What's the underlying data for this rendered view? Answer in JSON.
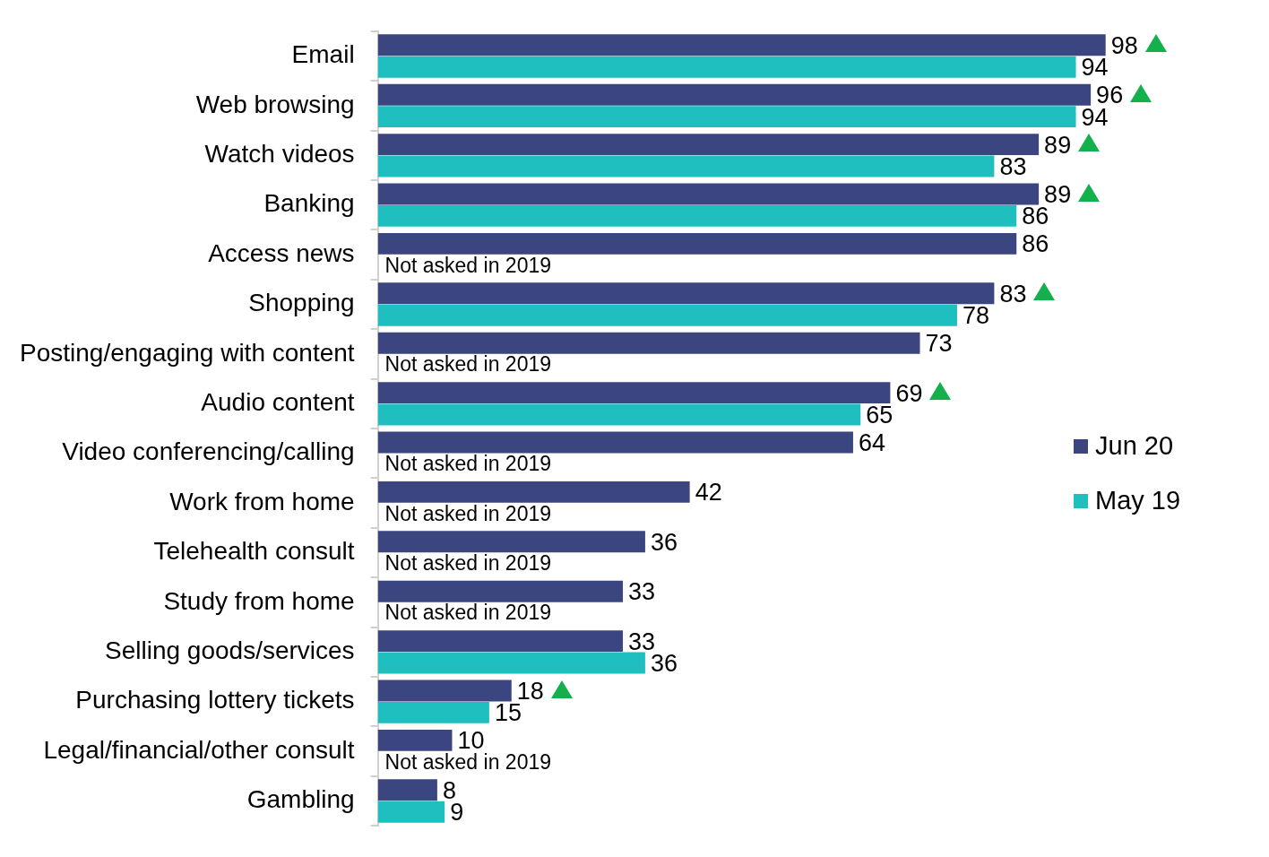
{
  "chart_data": {
    "type": "bar",
    "orientation": "horizontal",
    "categories": [
      "Email",
      "Web browsing",
      "Watch videos",
      "Banking",
      "Access news",
      "Shopping",
      "Posting/engaging with content",
      "Audio content",
      "Video conferencing/calling",
      "Work from home",
      "Telehealth consult",
      "Study from home",
      "Selling goods/services",
      "Purchasing lottery tickets",
      "Legal/financial/other consult",
      "Gambling"
    ],
    "series": [
      {
        "name": "Jun 20",
        "color": "#3b4580",
        "values": [
          98,
          96,
          89,
          89,
          86,
          83,
          73,
          69,
          64,
          42,
          36,
          33,
          33,
          18,
          10,
          8
        ],
        "value_labels": [
          "98",
          "96",
          "89",
          "89",
          "86",
          "83",
          "73",
          "69",
          "64",
          "42",
          "36",
          "33",
          "33",
          "18",
          "10",
          "8"
        ]
      },
      {
        "name": "May 19",
        "color": "#1fbfbf",
        "values": [
          94,
          94,
          83,
          86,
          null,
          78,
          null,
          65,
          null,
          null,
          null,
          null,
          36,
          15,
          null,
          9
        ],
        "value_labels": [
          "94",
          "94",
          "83",
          "86",
          "Not asked in 2019",
          "78",
          "Not asked in 2019",
          "65",
          "Not asked in 2019",
          "Not asked in 2019",
          "Not asked in 2019",
          "Not asked in 2019",
          "36",
          "15",
          "Not asked in 2019",
          "9"
        ]
      }
    ],
    "grid": false,
    "legend": "right"
  }
}
